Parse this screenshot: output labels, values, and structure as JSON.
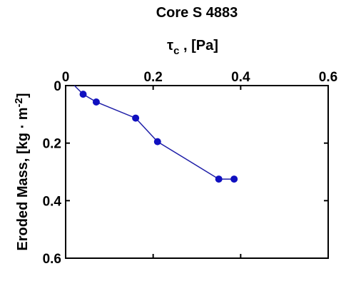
{
  "chart_data": {
    "type": "line",
    "title": "Core S 4883",
    "xlabel": {
      "symbol": "τ",
      "subscript": "c",
      "rest": " , [Pa]"
    },
    "ylabel": {
      "prefix": "Eroded Mass, [kg · m",
      "superscript": "-2",
      "suffix": "]"
    },
    "xlim": [
      0,
      0.6
    ],
    "ylim": [
      0,
      0.6
    ],
    "y_inverted": true,
    "x_axis_position": "top",
    "grid": false,
    "xticks": [
      0,
      0.2,
      0.4,
      0.6
    ],
    "xtick_labels": [
      "0",
      "0.2",
      "0.4",
      "0.6"
    ],
    "yticks": [
      0,
      0.2,
      0.4,
      0.6
    ],
    "ytick_labels": [
      "0",
      "0.2",
      "0.4",
      "0.6"
    ],
    "line_start": [
      0.02,
      0
    ],
    "series": [
      {
        "color": "#1f1fa8",
        "marker": "circle",
        "marker_color": "#1010c0",
        "x": [
          0.04,
          0.07,
          0.16,
          0.21,
          0.35,
          0.385
        ],
        "y": [
          0.03,
          0.057,
          0.113,
          0.195,
          0.325,
          0.325
        ]
      }
    ]
  }
}
